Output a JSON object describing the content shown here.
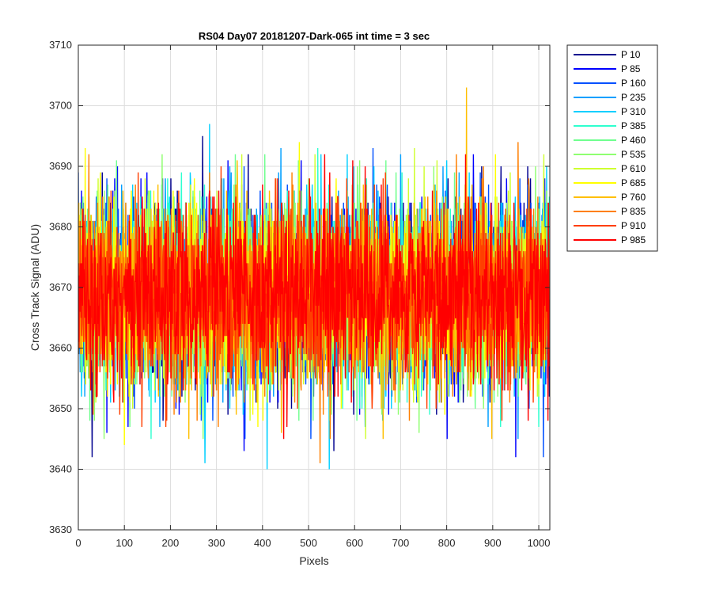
{
  "chart_data": {
    "type": "line",
    "title": "RS04 Day07 20181207-Dark-065 int time = 3 sec",
    "xlabel": "Pixels",
    "ylabel": "Cross Track Signal (ADU)",
    "xlim": [
      0,
      1024
    ],
    "ylim": [
      3630,
      3710
    ],
    "xticks": [
      0,
      100,
      200,
      300,
      400,
      500,
      600,
      700,
      800,
      900,
      1000
    ],
    "yticks": [
      3630,
      3640,
      3650,
      3660,
      3670,
      3680,
      3690,
      3700,
      3710
    ],
    "grid": true,
    "legend_position": "outside-right",
    "n_pixels": 1024,
    "series_stats": {
      "mean": 3669,
      "typical_range": [
        3655,
        3684
      ]
    },
    "series": [
      {
        "name": "P 10",
        "color": "#00008f",
        "extremes": [
          [
            30,
            3642
          ],
          [
            270,
            3695
          ],
          [
            555,
            3643
          ]
        ]
      },
      {
        "name": "P 85",
        "color": "#0000ff",
        "extremes": [
          [
            85,
            3690
          ],
          [
            360,
            3643
          ],
          [
            950,
            3642
          ]
        ]
      },
      {
        "name": "P 160",
        "color": "#0050ff",
        "extremes": [
          [
            265,
            3683
          ],
          [
            640,
            3693
          ],
          [
            1010,
            3642
          ]
        ]
      },
      {
        "name": "P 235",
        "color": "#009fff",
        "extremes": [
          [
            440,
            3693
          ],
          [
            890,
            3647
          ]
        ]
      },
      {
        "name": "P 310",
        "color": "#00cfff",
        "extremes": [
          [
            285,
            3697
          ],
          [
            275,
            3641
          ],
          [
            410,
            3640
          ],
          [
            545,
            3640
          ]
        ]
      },
      {
        "name": "P 385",
        "color": "#2fffcf",
        "extremes": [
          [
            520,
            3693
          ],
          [
            1000,
            3647
          ]
        ]
      },
      {
        "name": "P 460",
        "color": "#70ff8f",
        "extremes": [
          [
            600,
            3684
          ],
          [
            510,
            3648
          ]
        ]
      },
      {
        "name": "P 535",
        "color": "#8fff70",
        "extremes": [
          [
            500,
            3688
          ],
          [
            880,
            3650
          ]
        ]
      },
      {
        "name": "P 610",
        "color": "#cfff2f",
        "extremes": [
          [
            730,
            3639
          ],
          [
            730,
            3693
          ]
        ]
      },
      {
        "name": "P 685",
        "color": "#ffff00",
        "extremes": [
          [
            15,
            3693
          ],
          [
            480,
            3694
          ],
          [
            100,
            3644
          ]
        ]
      },
      {
        "name": "P 760",
        "color": "#ffbf00",
        "extremes": [
          [
            843,
            3703
          ],
          [
            240,
            3645
          ]
        ]
      },
      {
        "name": "P 835",
        "color": "#ff7f00",
        "extremes": [
          [
            955,
            3694
          ],
          [
            525,
            3641
          ]
        ]
      },
      {
        "name": "P 910",
        "color": "#ff3f00",
        "extremes": [
          [
            310,
            3690
          ],
          [
            190,
            3647
          ]
        ]
      },
      {
        "name": "P 985",
        "color": "#ff0000",
        "extremes": [
          [
            1020,
            3648
          ]
        ]
      }
    ]
  }
}
